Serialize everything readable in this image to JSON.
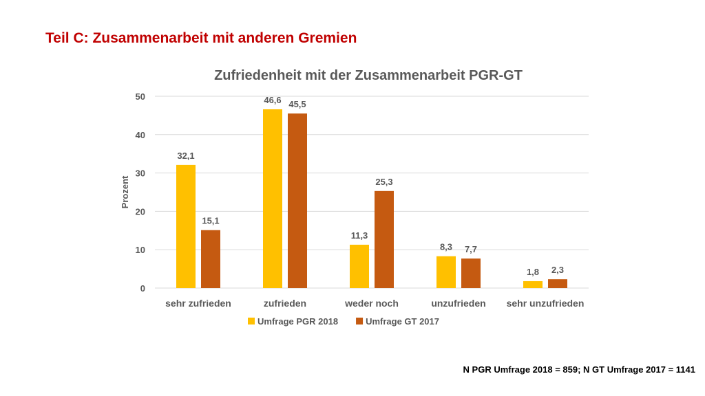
{
  "slide": {
    "title": "Teil C: Zusammenarbeit mit anderen Gremien",
    "footnote": "N PGR Umfrage 2018 = 859; N GT Umfrage 2017 = 1141"
  },
  "chart_data": {
    "type": "bar",
    "title": "Zufriedenheit mit der Zusammenarbeit PGR-GT",
    "xlabel": "",
    "ylabel": "Prozent",
    "ylim": [
      0,
      50
    ],
    "yticks": [
      0,
      10,
      20,
      30,
      40,
      50
    ],
    "grid": true,
    "legend_position": "bottom",
    "categories": [
      "sehr zufrieden",
      "zufrieden",
      "weder noch",
      "unzufrieden",
      "sehr unzufrieden"
    ],
    "series": [
      {
        "name": "Umfrage PGR 2018",
        "color": "#ffc000",
        "values": [
          32.1,
          46.6,
          11.3,
          8.3,
          1.8
        ],
        "labels": [
          "32,1",
          "46,6",
          "11,3",
          "8,3",
          "1,8"
        ]
      },
      {
        "name": "Umfrage GT 2017",
        "color": "#c55a11",
        "values": [
          15.1,
          45.5,
          25.3,
          7.7,
          2.3
        ],
        "labels": [
          "15,1",
          "45,5",
          "25,3",
          "7,7",
          "2,3"
        ]
      }
    ]
  }
}
